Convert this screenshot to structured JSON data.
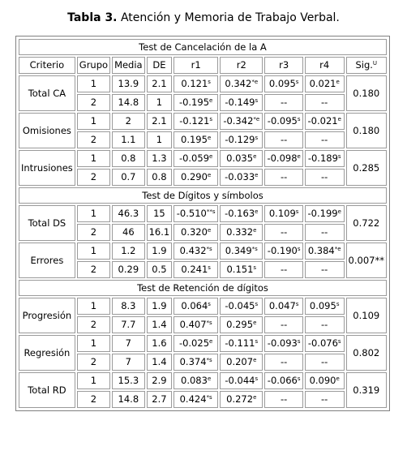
{
  "caption": {
    "label": "Tabla 3.",
    "text": " Atención y Memoria de Trabajo Verbal."
  },
  "headers": {
    "criterio": "Criterio",
    "grupo": "Grupo",
    "media": "Media",
    "de": "DE",
    "r1": "r1",
    "r2": "r2",
    "r3": "r3",
    "r4": "r4",
    "sig": "Sig.",
    "sig_sup": "U"
  },
  "sections": [
    {
      "title": "Test de Cancelación de la A",
      "criteria": [
        {
          "name": "Total CA",
          "sig": "0.180",
          "rows": [
            {
              "g": "1",
              "m": "13.9",
              "de": "2.1",
              "r1": "0.121",
              "r1s": "s",
              "r2": "0.342",
              "r2s": "*e",
              "r3": "0.095",
              "r3s": "s",
              "r4": "0.021",
              "r4s": "e"
            },
            {
              "g": "2",
              "m": "14.8",
              "de": "1",
              "r1": "-0.195",
              "r1s": "e",
              "r2": "-0.149",
              "r2s": "s",
              "r3": "--",
              "r3s": "",
              "r4": "--",
              "r4s": ""
            }
          ]
        },
        {
          "name": "Omisiones",
          "sig": "0.180",
          "rows": [
            {
              "g": "1",
              "m": "2",
              "de": "2.1",
              "r1": "-0.121",
              "r1s": "s",
              "r2": "-0.342",
              "r2s": "*e",
              "r3": "-0.095",
              "r3s": "s",
              "r4": "-0.021",
              "r4s": "e"
            },
            {
              "g": "2",
              "m": "1.1",
              "de": "1",
              "r1": "0.195",
              "r1s": "e",
              "r2": "-0.129",
              "r2s": "s",
              "r3": "--",
              "r3s": "",
              "r4": "--",
              "r4s": ""
            }
          ]
        },
        {
          "name": "Intrusiones",
          "sig": "0.285",
          "rows": [
            {
              "g": "1",
              "m": "0.8",
              "de": "1.3",
              "r1": "-0.059",
              "r1s": "e",
              "r2": "0.035",
              "r2s": "e",
              "r3": "-0.098",
              "r3s": "e",
              "r4": "-0.189",
              "r4s": "s"
            },
            {
              "g": "2",
              "m": "0.7",
              "de": "0.8",
              "r1": "0.290",
              "r1s": "e",
              "r2": "-0.033",
              "r2s": "e",
              "r3": "--",
              "r3s": "",
              "r4": "--",
              "r4s": ""
            }
          ]
        }
      ]
    },
    {
      "title": "Test de Dígitos y símbolos",
      "criteria": [
        {
          "name": "Total DS",
          "sig": "0.722",
          "rows": [
            {
              "g": "1",
              "m": "46.3",
              "de": "15",
              "r1": "-0.510",
              "r1s": "**s",
              "r2": "-0.163",
              "r2s": "e",
              "r3": "0.109",
              "r3s": "s",
              "r4": "-0.199",
              "r4s": "e"
            },
            {
              "g": "2",
              "m": "46",
              "de": "16.1",
              "r1": "0.320",
              "r1s": "e",
              "r2": "0.332",
              "r2s": "e",
              "r3": "--",
              "r3s": "",
              "r4": "--",
              "r4s": ""
            }
          ]
        },
        {
          "name": "Errores",
          "sig": "0.007**",
          "rows": [
            {
              "g": "1",
              "m": "1.2",
              "de": "1.9",
              "r1": "0.432",
              "r1s": "*s",
              "r2": "0.349",
              "r2s": "*s",
              "r3": "-0.190",
              "r3s": "s",
              "r4": "0.384",
              "r4s": "*e"
            },
            {
              "g": "2",
              "m": "0.29",
              "de": "0.5",
              "r1": "0.241",
              "r1s": "s",
              "r2": "0.151",
              "r2s": "s",
              "r3": "--",
              "r3s": "",
              "r4": "--",
              "r4s": ""
            }
          ]
        }
      ]
    },
    {
      "title": "Test de Retención de dígitos",
      "criteria": [
        {
          "name": "Progresión",
          "sig": "0.109",
          "rows": [
            {
              "g": "1",
              "m": "8.3",
              "de": "1.9",
              "r1": "0.064",
              "r1s": "s",
              "r2": "-0.045",
              "r2s": "s",
              "r3": "0.047",
              "r3s": "s",
              "r4": "0.095",
              "r4s": "s"
            },
            {
              "g": "2",
              "m": "7.7",
              "de": "1.4",
              "r1": "0.407",
              "r1s": "*s",
              "r2": "0.295",
              "r2s": "e",
              "r3": "--",
              "r3s": "",
              "r4": "--",
              "r4s": ""
            }
          ]
        },
        {
          "name": "Regresión",
          "sig": "0.802",
          "rows": [
            {
              "g": "1",
              "m": "7",
              "de": "1.6",
              "r1": "-0.025",
              "r1s": "e",
              "r2": "-0.111",
              "r2s": "s",
              "r3": "-0.093",
              "r3s": "s",
              "r4": "-0.076",
              "r4s": "s"
            },
            {
              "g": "2",
              "m": "7",
              "de": "1.4",
              "r1": "0.374",
              "r1s": "*s",
              "r2": "0.207",
              "r2s": "e",
              "r3": "--",
              "r3s": "",
              "r4": "--",
              "r4s": ""
            }
          ]
        },
        {
          "name": "Total RD",
          "sig": "0.319",
          "rows": [
            {
              "g": "1",
              "m": "15.3",
              "de": "2.9",
              "r1": "0.083",
              "r1s": "e",
              "r2": "-0.044",
              "r2s": "s",
              "r3": "-0.066",
              "r3s": "s",
              "r4": "0.090",
              "r4s": "e"
            },
            {
              "g": "2",
              "m": "14.8",
              "de": "2.7",
              "r1": "0.424",
              "r1s": "*s",
              "r2": "0.272",
              "r2s": "e",
              "r3": "--",
              "r3s": "",
              "r4": "--",
              "r4s": ""
            }
          ]
        }
      ]
    }
  ]
}
